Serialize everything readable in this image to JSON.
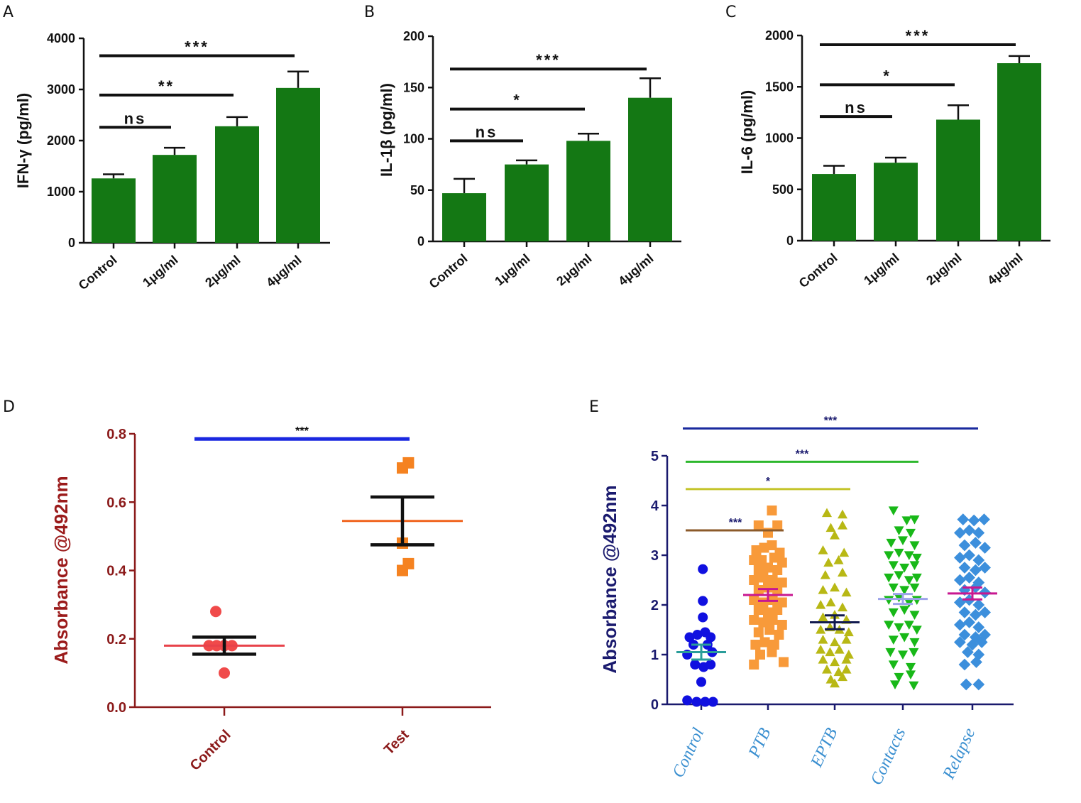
{
  "panel_letters": [
    "A",
    "B",
    "C",
    "D",
    "E"
  ],
  "chart_data": [
    {
      "panel": "A",
      "type": "bar",
      "ylabel": "IFN-γ (pg/ml)",
      "categories": [
        "Control",
        "1μg/ml",
        "2μg/ml",
        "4μg/ml"
      ],
      "values": [
        1260,
        1720,
        2280,
        3030
      ],
      "errors": [
        80,
        140,
        180,
        320
      ],
      "ylim": [
        0,
        4000
      ],
      "yticks": [
        0,
        1000,
        2000,
        3000,
        4000
      ],
      "bar_color": "#147814",
      "significance": [
        {
          "label": "ns",
          "from": 0,
          "to": 1,
          "y": 2260
        },
        {
          "label": "**",
          "from": 0,
          "to": 2,
          "y": 2890
        },
        {
          "label": "***",
          "from": 0,
          "to": 3,
          "y": 3660
        }
      ]
    },
    {
      "panel": "B",
      "type": "bar",
      "ylabel": "IL-1β (pg/ml)",
      "categories": [
        "Control",
        "1μg/ml",
        "2μg/ml",
        "4μg/ml"
      ],
      "values": [
        47,
        75,
        98,
        140
      ],
      "errors": [
        14,
        4,
        7,
        19
      ],
      "ylim": [
        0,
        200
      ],
      "yticks": [
        0,
        50,
        100,
        150,
        200
      ],
      "bar_color": "#147814",
      "significance": [
        {
          "label": "ns",
          "from": 0,
          "to": 1,
          "y": 98
        },
        {
          "label": "*",
          "from": 0,
          "to": 2,
          "y": 129
        },
        {
          "label": "***",
          "from": 0,
          "to": 3,
          "y": 168
        }
      ]
    },
    {
      "panel": "C",
      "type": "bar",
      "ylabel": "IL-6 (pg/ml)",
      "categories": [
        "Control",
        "1μg/ml",
        "2μg/ml",
        "4μg/ml"
      ],
      "values": [
        650,
        760,
        1180,
        1730
      ],
      "errors": [
        80,
        50,
        140,
        70
      ],
      "ylim": [
        0,
        2000
      ],
      "yticks": [
        0,
        500,
        1000,
        1500,
        2000
      ],
      "bar_color": "#147814",
      "significance": [
        {
          "label": "ns",
          "from": 0,
          "to": 1,
          "y": 1210
        },
        {
          "label": "*",
          "from": 0,
          "to": 2,
          "y": 1520
        },
        {
          "label": "***",
          "from": 0,
          "to": 3,
          "y": 1910
        }
      ]
    },
    {
      "panel": "D",
      "type": "scatter",
      "ylabel": "Absorbance @492nm",
      "categories": [
        "Control",
        "Test"
      ],
      "ylim": [
        0,
        0.8
      ],
      "yticks": [
        "0.0",
        "0.2",
        "0.4",
        "0.6",
        "0.8"
      ],
      "series": [
        {
          "name": "Control",
          "color": "#f04a4a",
          "marker": "circle",
          "mean": 0.18,
          "sem": 0.025,
          "mean_color": "#e8424a",
          "sem_color": "#111111",
          "points": [
            [
              -0.1,
              0.28
            ],
            [
              -0.18,
              0.18
            ],
            [
              -0.09,
              0.18
            ],
            [
              0,
              0.18
            ],
            [
              0.09,
              0.18
            ],
            [
              0,
              0.1
            ]
          ]
        },
        {
          "name": "Test",
          "color": "#f58220",
          "marker": "square",
          "mean": 0.545,
          "sem": 0.07,
          "mean_color": "#f0641e",
          "sem_color": "#111111",
          "points": [
            [
              0,
              0.7
            ],
            [
              0.07,
              0.715
            ],
            [
              0,
              0.48
            ],
            [
              0,
              0.4
            ],
            [
              0.07,
              0.42
            ]
          ]
        }
      ],
      "significance": [
        {
          "label": "***",
          "from": 0,
          "to": 1,
          "y": 0.785,
          "color": "#1a28e0"
        }
      ]
    },
    {
      "panel": "E",
      "type": "scatter",
      "ylabel": "Absorbance @492nm",
      "categories": [
        "Control",
        "PTB",
        "EPTB",
        "Contacts",
        "Relapse"
      ],
      "ylim": [
        0,
        5
      ],
      "yticks": [
        "0",
        "1",
        "2",
        "3",
        "4",
        "5"
      ],
      "series": [
        {
          "name": "Control",
          "color": "#1010e0",
          "marker": "circle",
          "mean": 1.05,
          "sem": 0.15,
          "mean_color": "#2a9d9a",
          "sem_color": "#2a9d9a",
          "points": [
            [
              0.02,
              2.72
            ],
            [
              0.02,
              2.08
            ],
            [
              0.02,
              1.75
            ],
            [
              -0.15,
              1.35
            ],
            [
              -0.05,
              1.4
            ],
            [
              0.05,
              1.45
            ],
            [
              0.12,
              1.35
            ],
            [
              -0.1,
              1.2
            ],
            [
              0.08,
              1.2
            ],
            [
              -0.18,
              1.0
            ],
            [
              0.14,
              1.05
            ],
            [
              -0.08,
              0.8
            ],
            [
              0.03,
              0.75
            ],
            [
              0.12,
              0.8
            ],
            [
              0.0,
              0.45
            ],
            [
              -0.18,
              0.08
            ],
            [
              -0.06,
              0.05
            ],
            [
              0.05,
              0.05
            ],
            [
              0.15,
              0.05
            ]
          ]
        },
        {
          "name": "PTB",
          "color": "#f89a3a",
          "marker": "square",
          "mean": 2.2,
          "sem": 0.12,
          "mean_color": "#c81890",
          "sem_color": "#c81890",
          "points": [
            [
              0.05,
              3.9
            ],
            [
              -0.12,
              3.6
            ],
            [
              0.12,
              3.6
            ],
            [
              0.0,
              3.45
            ],
            [
              -0.15,
              3.1
            ],
            [
              -0.05,
              3.15
            ],
            [
              0.05,
              3.2
            ],
            [
              0.15,
              3.05
            ],
            [
              -0.18,
              2.9
            ],
            [
              -0.08,
              2.9
            ],
            [
              0.08,
              2.95
            ],
            [
              0.18,
              2.85
            ],
            [
              -0.12,
              2.7
            ],
            [
              0.0,
              2.75
            ],
            [
              0.12,
              2.7
            ],
            [
              -0.18,
              2.5
            ],
            [
              -0.06,
              2.55
            ],
            [
              0.06,
              2.5
            ],
            [
              0.18,
              2.45
            ],
            [
              -0.12,
              2.3
            ],
            [
              0.0,
              2.35
            ],
            [
              0.12,
              2.3
            ],
            [
              -0.18,
              2.1
            ],
            [
              -0.06,
              2.05
            ],
            [
              0.06,
              2.1
            ],
            [
              0.18,
              2.05
            ],
            [
              -0.12,
              1.9
            ],
            [
              0.0,
              1.85
            ],
            [
              0.12,
              1.9
            ],
            [
              -0.18,
              1.7
            ],
            [
              -0.06,
              1.65
            ],
            [
              0.06,
              1.7
            ],
            [
              0.18,
              1.6
            ],
            [
              -0.12,
              1.45
            ],
            [
              0.02,
              1.5
            ],
            [
              0.14,
              1.4
            ],
            [
              -0.16,
              1.2
            ],
            [
              -0.04,
              1.25
            ],
            [
              0.08,
              1.2
            ],
            [
              -0.1,
              1.0
            ],
            [
              0.05,
              1.05
            ],
            [
              -0.18,
              0.8
            ],
            [
              0.2,
              0.85
            ]
          ]
        },
        {
          "name": "EPTB",
          "color": "#b8b815",
          "marker": "triangle-up",
          "mean": 1.65,
          "sem": 0.14,
          "mean_color": "#111a4e",
          "sem_color": "#111a4e",
          "points": [
            [
              -0.1,
              3.85
            ],
            [
              0.1,
              3.82
            ],
            [
              -0.05,
              3.55
            ],
            [
              0.1,
              3.6
            ],
            [
              0.0,
              3.4
            ],
            [
              -0.15,
              3.1
            ],
            [
              0.12,
              3.05
            ],
            [
              -0.08,
              2.85
            ],
            [
              0.05,
              2.9
            ],
            [
              -0.12,
              2.6
            ],
            [
              0.1,
              2.65
            ],
            [
              -0.15,
              2.3
            ],
            [
              0.0,
              2.35
            ],
            [
              0.15,
              2.25
            ],
            [
              -0.18,
              2.0
            ],
            [
              -0.05,
              2.05
            ],
            [
              0.1,
              1.95
            ],
            [
              -0.15,
              1.75
            ],
            [
              0.0,
              1.8
            ],
            [
              0.15,
              1.7
            ],
            [
              -0.18,
              1.5
            ],
            [
              -0.06,
              1.55
            ],
            [
              0.06,
              1.5
            ],
            [
              0.18,
              1.45
            ],
            [
              -0.15,
              1.3
            ],
            [
              0.0,
              1.25
            ],
            [
              0.15,
              1.3
            ],
            [
              -0.18,
              1.1
            ],
            [
              -0.06,
              1.05
            ],
            [
              0.06,
              1.1
            ],
            [
              0.18,
              1.0
            ],
            [
              -0.15,
              0.9
            ],
            [
              0.0,
              0.85
            ],
            [
              0.15,
              0.9
            ],
            [
              -0.1,
              0.7
            ],
            [
              0.05,
              0.65
            ],
            [
              0.15,
              0.7
            ],
            [
              -0.05,
              0.5
            ],
            [
              0.1,
              0.55
            ],
            [
              0.0,
              0.42
            ]
          ]
        },
        {
          "name": "Contacts",
          "color": "#18b818",
          "marker": "triangle-down",
          "mean": 2.12,
          "sem": 0.1,
          "mean_color": "#9ca3ea",
          "sem_color": "#9ca3ea",
          "points": [
            [
              -0.12,
              3.9
            ],
            [
              0.05,
              3.7
            ],
            [
              0.15,
              3.72
            ],
            [
              -0.05,
              3.5
            ],
            [
              0.1,
              3.45
            ],
            [
              -0.15,
              3.25
            ],
            [
              0.0,
              3.3
            ],
            [
              0.15,
              3.2
            ],
            [
              -0.18,
              3.0
            ],
            [
              -0.05,
              3.05
            ],
            [
              0.08,
              3.0
            ],
            [
              0.18,
              2.95
            ],
            [
              -0.12,
              2.8
            ],
            [
              0.02,
              2.75
            ],
            [
              0.15,
              2.8
            ],
            [
              -0.18,
              2.55
            ],
            [
              -0.05,
              2.6
            ],
            [
              0.08,
              2.5
            ],
            [
              0.18,
              2.55
            ],
            [
              -0.12,
              2.35
            ],
            [
              0.02,
              2.3
            ],
            [
              0.15,
              2.35
            ],
            [
              -0.18,
              2.1
            ],
            [
              -0.05,
              2.15
            ],
            [
              0.08,
              2.05
            ],
            [
              0.18,
              2.1
            ],
            [
              -0.12,
              1.85
            ],
            [
              0.02,
              1.9
            ],
            [
              0.15,
              1.8
            ],
            [
              -0.18,
              1.6
            ],
            [
              -0.05,
              1.55
            ],
            [
              0.08,
              1.6
            ],
            [
              0.18,
              1.5
            ],
            [
              -0.12,
              1.3
            ],
            [
              0.02,
              1.35
            ],
            [
              0.15,
              1.25
            ],
            [
              -0.16,
              1.05
            ],
            [
              0.0,
              1.0
            ],
            [
              0.14,
              1.05
            ],
            [
              -0.12,
              0.8
            ],
            [
              0.1,
              0.75
            ],
            [
              -0.05,
              0.55
            ],
            [
              0.1,
              0.6
            ],
            [
              -0.1,
              0.4
            ],
            [
              0.14,
              0.38
            ]
          ]
        },
        {
          "name": "Relapse",
          "color": "#3c8fdc",
          "marker": "diamond",
          "mean": 2.23,
          "sem": 0.12,
          "mean_color": "#c81890",
          "sem_color": "#c81890",
          "points": [
            [
              -0.12,
              3.72
            ],
            [
              0.02,
              3.7
            ],
            [
              0.15,
              3.72
            ],
            [
              -0.16,
              3.45
            ],
            [
              -0.04,
              3.5
            ],
            [
              0.08,
              3.45
            ],
            [
              -0.1,
              3.2
            ],
            [
              0.04,
              3.25
            ],
            [
              0.16,
              3.15
            ],
            [
              -0.16,
              2.95
            ],
            [
              -0.04,
              3.0
            ],
            [
              0.08,
              2.9
            ],
            [
              -0.1,
              2.75
            ],
            [
              0.04,
              2.7
            ],
            [
              0.16,
              2.75
            ],
            [
              -0.16,
              2.5
            ],
            [
              -0.04,
              2.55
            ],
            [
              0.08,
              2.45
            ],
            [
              -0.1,
              2.3
            ],
            [
              0.04,
              2.35
            ],
            [
              0.16,
              2.25
            ],
            [
              -0.16,
              2.05
            ],
            [
              -0.04,
              2.1
            ],
            [
              0.08,
              2.0
            ],
            [
              -0.1,
              1.85
            ],
            [
              0.04,
              1.8
            ],
            [
              0.16,
              1.85
            ],
            [
              -0.16,
              1.6
            ],
            [
              -0.04,
              1.65
            ],
            [
              0.08,
              1.55
            ],
            [
              -0.1,
              1.4
            ],
            [
              0.04,
              1.35
            ],
            [
              0.16,
              1.4
            ],
            [
              -0.16,
              1.25
            ],
            [
              0.0,
              1.2
            ],
            [
              0.12,
              1.25
            ],
            [
              -0.06,
              1.05
            ],
            [
              0.08,
              1.0
            ],
            [
              -0.1,
              0.8
            ],
            [
              0.05,
              0.85
            ],
            [
              -0.08,
              0.4
            ],
            [
              0.08,
              0.4
            ]
          ]
        }
      ],
      "significance": [
        {
          "label": "***",
          "from": 0,
          "to": 4,
          "y": 5.55,
          "color": "#1a2a9e",
          "label_color": "#1a1a6e"
        },
        {
          "label": "***",
          "from": 0,
          "to": 3,
          "y": 4.88,
          "color": "#2db82d",
          "label_color": "#1a1a6e"
        },
        {
          "label": "*",
          "from": 0,
          "to": 2,
          "y": 4.33,
          "color": "#c4c42a",
          "label_color": "#1a1a6e"
        },
        {
          "label": "***",
          "from": 0,
          "to": 1,
          "y": 3.5,
          "color": "#8b5a2a",
          "label_color": "#1a1a6e"
        }
      ]
    }
  ]
}
